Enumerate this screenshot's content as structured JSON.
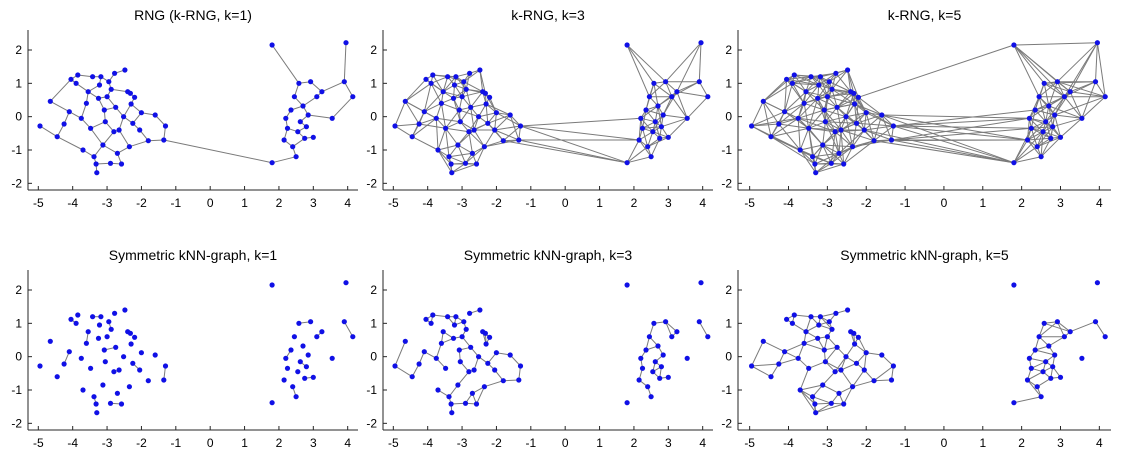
{
  "figure": {
    "background": "#ffffff",
    "edge_color": "#7a7a7a",
    "node_color": "#1010e6"
  },
  "chart_data": [
    {
      "type": "scatter",
      "panel": "rng-k1",
      "title": "RNG (k-RNG, k=1)",
      "xlim": [
        -5.3,
        4.3
      ],
      "ylim": [
        -2.2,
        2.6
      ],
      "xticks": [
        -5,
        -4,
        -3,
        -2,
        -1,
        0,
        1,
        2,
        3,
        4
      ],
      "yticks": [
        -2,
        -1,
        0,
        1,
        2
      ],
      "k": 1,
      "edge_rule": "rng"
    },
    {
      "type": "scatter",
      "panel": "rng-k3",
      "title": "k-RNG, k=3",
      "xlim": [
        -5.3,
        4.3
      ],
      "ylim": [
        -2.2,
        2.6
      ],
      "xticks": [
        -5,
        -4,
        -3,
        -2,
        -1,
        0,
        1,
        2,
        3,
        4
      ],
      "yticks": [
        -2,
        -1,
        0,
        1,
        2
      ],
      "k": 3,
      "edge_rule": "rng"
    },
    {
      "type": "scatter",
      "panel": "rng-k5",
      "title": "k-RNG, k=5",
      "xlim": [
        -5.3,
        4.3
      ],
      "ylim": [
        -2.2,
        2.6
      ],
      "xticks": [
        -5,
        -4,
        -3,
        -2,
        -1,
        0,
        1,
        2,
        3,
        4
      ],
      "yticks": [
        -2,
        -1,
        0,
        1,
        2
      ],
      "k": 5,
      "edge_rule": "rng"
    },
    {
      "type": "scatter",
      "panel": "knn-k1",
      "title": "Symmetric kNN-graph, k=1",
      "xlim": [
        -5.3,
        4.3
      ],
      "ylim": [
        -2.2,
        2.6
      ],
      "xticks": [
        -5,
        -4,
        -3,
        -2,
        -1,
        0,
        1,
        2,
        3,
        4
      ],
      "yticks": [
        -2,
        -1,
        0,
        1,
        2
      ],
      "k": 1,
      "edge_rule": "knn"
    },
    {
      "type": "scatter",
      "panel": "knn-k3",
      "title": "Symmetric kNN-graph, k=3",
      "xlim": [
        -5.3,
        4.3
      ],
      "ylim": [
        -2.2,
        2.6
      ],
      "xticks": [
        -5,
        -4,
        -3,
        -2,
        -1,
        0,
        1,
        2,
        3,
        4
      ],
      "yticks": [
        -2,
        -1,
        0,
        1,
        2
      ],
      "k": 3,
      "edge_rule": "knn"
    },
    {
      "type": "scatter",
      "panel": "knn-k5",
      "title": "Symmetric kNN-graph, k=5",
      "xlim": [
        -5.3,
        4.3
      ],
      "ylim": [
        -2.2,
        2.6
      ],
      "xticks": [
        -5,
        -4,
        -3,
        -2,
        -1,
        0,
        1,
        2,
        3,
        4
      ],
      "yticks": [
        -2,
        -1,
        0,
        1,
        2
      ],
      "k": 5,
      "edge_rule": "knn"
    }
  ],
  "points": [
    [
      -4.95,
      -0.28
    ],
    [
      -4.65,
      0.46
    ],
    [
      -4.45,
      -0.6
    ],
    [
      -4.25,
      -0.22
    ],
    [
      -4.1,
      0.15
    ],
    [
      -4.05,
      1.12
    ],
    [
      -3.9,
      1.0
    ],
    [
      -3.85,
      1.25
    ],
    [
      -3.75,
      -0.05
    ],
    [
      -3.7,
      -1.0
    ],
    [
      -3.6,
      0.4
    ],
    [
      -3.55,
      0.75
    ],
    [
      -3.48,
      -0.35
    ],
    [
      -3.42,
      1.2
    ],
    [
      -3.38,
      -1.2
    ],
    [
      -3.32,
      -1.42
    ],
    [
      -3.3,
      -1.68
    ],
    [
      -3.25,
      0.55
    ],
    [
      -3.22,
      0.95
    ],
    [
      -3.18,
      1.2
    ],
    [
      -3.12,
      -0.85
    ],
    [
      -3.08,
      0.2
    ],
    [
      -3.05,
      -0.15
    ],
    [
      -3.0,
      0.6
    ],
    [
      -2.95,
      1.05
    ],
    [
      -2.9,
      -1.4
    ],
    [
      -2.88,
      0.82
    ],
    [
      -2.8,
      -0.45
    ],
    [
      -2.78,
      1.3
    ],
    [
      -2.75,
      0.28
    ],
    [
      -2.7,
      -1.1
    ],
    [
      -2.65,
      -0.4
    ],
    [
      -2.58,
      -1.42
    ],
    [
      -2.52,
      0.0
    ],
    [
      -2.48,
      1.4
    ],
    [
      -2.4,
      0.75
    ],
    [
      -2.35,
      -0.9
    ],
    [
      -2.32,
      0.7
    ],
    [
      -2.3,
      0.38
    ],
    [
      -2.25,
      -0.2
    ],
    [
      -2.2,
      0.58
    ],
    [
      -2.05,
      -0.4
    ],
    [
      -2.0,
      0.12
    ],
    [
      -1.8,
      -0.72
    ],
    [
      -1.6,
      0.05
    ],
    [
      -1.35,
      -0.7
    ],
    [
      -1.3,
      -0.28
    ],
    [
      1.8,
      2.15
    ],
    [
      1.8,
      -1.38
    ],
    [
      2.15,
      -0.7
    ],
    [
      2.2,
      -0.05
    ],
    [
      2.25,
      -0.35
    ],
    [
      2.35,
      0.2
    ],
    [
      2.4,
      -0.9
    ],
    [
      2.45,
      0.6
    ],
    [
      2.5,
      -1.2
    ],
    [
      2.55,
      -0.45
    ],
    [
      2.58,
      1.0
    ],
    [
      2.62,
      -0.15
    ],
    [
      2.7,
      0.32
    ],
    [
      2.75,
      -0.65
    ],
    [
      2.8,
      -0.3
    ],
    [
      2.85,
      0.05
    ],
    [
      2.92,
      1.05
    ],
    [
      3.0,
      -0.62
    ],
    [
      3.1,
      0.6
    ],
    [
      3.25,
      0.75
    ],
    [
      3.55,
      -0.05
    ],
    [
      3.9,
      1.05
    ],
    [
      3.95,
      2.22
    ],
    [
      4.15,
      0.6
    ]
  ]
}
